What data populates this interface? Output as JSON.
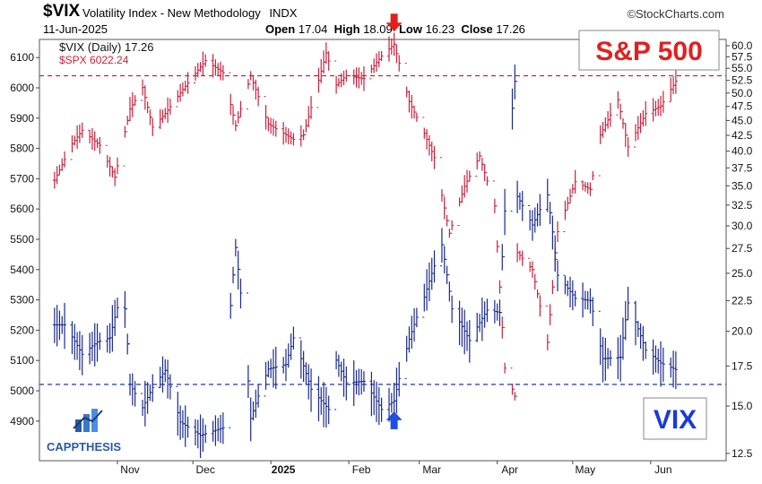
{
  "header": {
    "symbol": "$VIX",
    "description": "Volatility Index - New Methodology",
    "exchange": "INDX",
    "date": "11-Jun-2025",
    "open_label": "Open",
    "open": "17.04",
    "high_label": "High",
    "high": "18.09",
    "low_label": "Low",
    "low": "16.23",
    "close_label": "Close",
    "close": "17.26",
    "watermark": "©StockCharts.com"
  },
  "legend": {
    "vix": "$VIX (Daily) 17.26",
    "spx": "$SPX 6022.24"
  },
  "annotations": {
    "spx_box": "S&P 500",
    "vix_box": "VIX",
    "logo": "CAPPTHESIS"
  },
  "colors": {
    "vix": "#1a2a8c",
    "spx": "#c8203c",
    "spx_ref": "#c8203c",
    "vix_ref": "#1f35c8",
    "down_arrow": "#e0201c",
    "up_arrow": "#1f4fe0"
  },
  "chart_data": {
    "type": "line",
    "x_ticks": [
      "Nov",
      "Dec",
      "2025",
      "Feb",
      "Mar",
      "Apr",
      "May",
      "Jun"
    ],
    "left_axis": {
      "series": "$SPX",
      "ticks": [
        4900,
        5000,
        5100,
        5200,
        5300,
        5400,
        5500,
        5600,
        5700,
        5800,
        5900,
        6000,
        6100
      ],
      "range": [
        4790,
        6150
      ]
    },
    "right_axis": {
      "series": "$VIX",
      "ticks": [
        12.5,
        15.0,
        17.5,
        20.0,
        22.5,
        25.0,
        27.5,
        30.0,
        32.5,
        35.0,
        37.5,
        40.0,
        42.5,
        45.0,
        47.5,
        50.0,
        52.5,
        55.0,
        57.5,
        60.0
      ],
      "scale": "log"
    },
    "reference_lines": {
      "spx": 6040,
      "vix": 16.3
    },
    "grid": false,
    "series": [
      {
        "name": "$SPX",
        "axis": "left",
        "points": [
          [
            "2024-10-07",
            5695
          ],
          [
            "2024-10-14",
            5815
          ],
          [
            "2024-10-18",
            5860
          ],
          [
            "2024-10-25",
            5810
          ],
          [
            "2024-10-31",
            5705
          ],
          [
            "2024-11-06",
            5930
          ],
          [
            "2024-11-11",
            6001
          ],
          [
            "2024-11-15",
            5870
          ],
          [
            "2024-11-20",
            5915
          ],
          [
            "2024-11-27",
            5995
          ],
          [
            "2024-12-06",
            6090
          ],
          [
            "2024-12-13",
            6050
          ],
          [
            "2024-12-18",
            5875
          ],
          [
            "2024-12-24",
            6040
          ],
          [
            "2024-12-31",
            5880
          ],
          [
            "2025-01-10",
            5830
          ],
          [
            "2025-01-14",
            5845
          ],
          [
            "2025-01-23",
            6115
          ],
          [
            "2025-01-27",
            6010
          ],
          [
            "2025-01-31",
            6040
          ],
          [
            "2025-02-07",
            6030
          ],
          [
            "2025-02-14",
            6105
          ],
          [
            "2025-02-19",
            6144
          ],
          [
            "2025-02-25",
            5955
          ],
          [
            "2025-03-03",
            5850
          ],
          [
            "2025-03-07",
            5770
          ],
          [
            "2025-03-13",
            5520
          ],
          [
            "2025-03-19",
            5675
          ],
          [
            "2025-03-25",
            5775
          ],
          [
            "2025-03-31",
            5610
          ],
          [
            "2025-04-04",
            5075
          ],
          [
            "2025-04-08",
            4982
          ],
          [
            "2025-04-09",
            5456
          ],
          [
            "2025-04-15",
            5400
          ],
          [
            "2025-04-21",
            5160
          ],
          [
            "2025-04-25",
            5525
          ],
          [
            "2025-05-02",
            5690
          ],
          [
            "2025-05-08",
            5665
          ],
          [
            "2025-05-12",
            5845
          ],
          [
            "2025-05-19",
            5960
          ],
          [
            "2025-05-23",
            5805
          ],
          [
            "2025-05-30",
            5915
          ],
          [
            "2025-06-05",
            5940
          ],
          [
            "2025-06-11",
            6022
          ]
        ]
      },
      {
        "name": "$VIX",
        "axis": "right",
        "points": [
          [
            "2024-10-07",
            20.5
          ],
          [
            "2024-10-11",
            20.5
          ],
          [
            "2024-10-18",
            18.3
          ],
          [
            "2024-10-24",
            19.2
          ],
          [
            "2024-10-29",
            19.5
          ],
          [
            "2024-11-01",
            21.9
          ],
          [
            "2024-11-04",
            21.8
          ],
          [
            "2024-11-06",
            16.3
          ],
          [
            "2024-11-11",
            14.9
          ],
          [
            "2024-11-15",
            16.1
          ],
          [
            "2024-11-20",
            17.2
          ],
          [
            "2024-11-26",
            14.1
          ],
          [
            "2024-12-04",
            13.4
          ],
          [
            "2024-12-13",
            13.8
          ],
          [
            "2024-12-18",
            27.6
          ],
          [
            "2024-12-24",
            14.3
          ],
          [
            "2024-12-31",
            17.3
          ],
          [
            "2025-01-07",
            17.6
          ],
          [
            "2025-01-10",
            19.5
          ],
          [
            "2025-01-17",
            16.0
          ],
          [
            "2025-01-24",
            14.8
          ],
          [
            "2025-01-27",
            17.9
          ],
          [
            "2025-01-31",
            16.4
          ],
          [
            "2025-02-07",
            16.5
          ],
          [
            "2025-02-14",
            14.8
          ],
          [
            "2025-02-19",
            15.3
          ],
          [
            "2025-02-25",
            19.4
          ],
          [
            "2025-03-03",
            22.8
          ],
          [
            "2025-03-10",
            27.9
          ],
          [
            "2025-03-14",
            21.8
          ],
          [
            "2025-03-21",
            19.3
          ],
          [
            "2025-03-28",
            21.7
          ],
          [
            "2025-04-02",
            21.5
          ],
          [
            "2025-04-08",
            52.3
          ],
          [
            "2025-04-09",
            33.6
          ],
          [
            "2025-04-15",
            30.1
          ],
          [
            "2025-04-21",
            33.8
          ],
          [
            "2025-04-25",
            24.8
          ],
          [
            "2025-05-02",
            22.7
          ],
          [
            "2025-05-08",
            22.5
          ],
          [
            "2025-05-13",
            18.0
          ],
          [
            "2025-05-20",
            18.1
          ],
          [
            "2025-05-23",
            22.3
          ],
          [
            "2025-05-30",
            18.6
          ],
          [
            "2025-06-05",
            17.7
          ],
          [
            "2025-06-11",
            17.26
          ]
        ]
      }
    ],
    "markers": [
      {
        "type": "arrow-down",
        "date": "2025-02-19",
        "series": "$SPX"
      },
      {
        "type": "arrow-up",
        "date": "2025-02-19",
        "series": "$VIX"
      }
    ]
  }
}
